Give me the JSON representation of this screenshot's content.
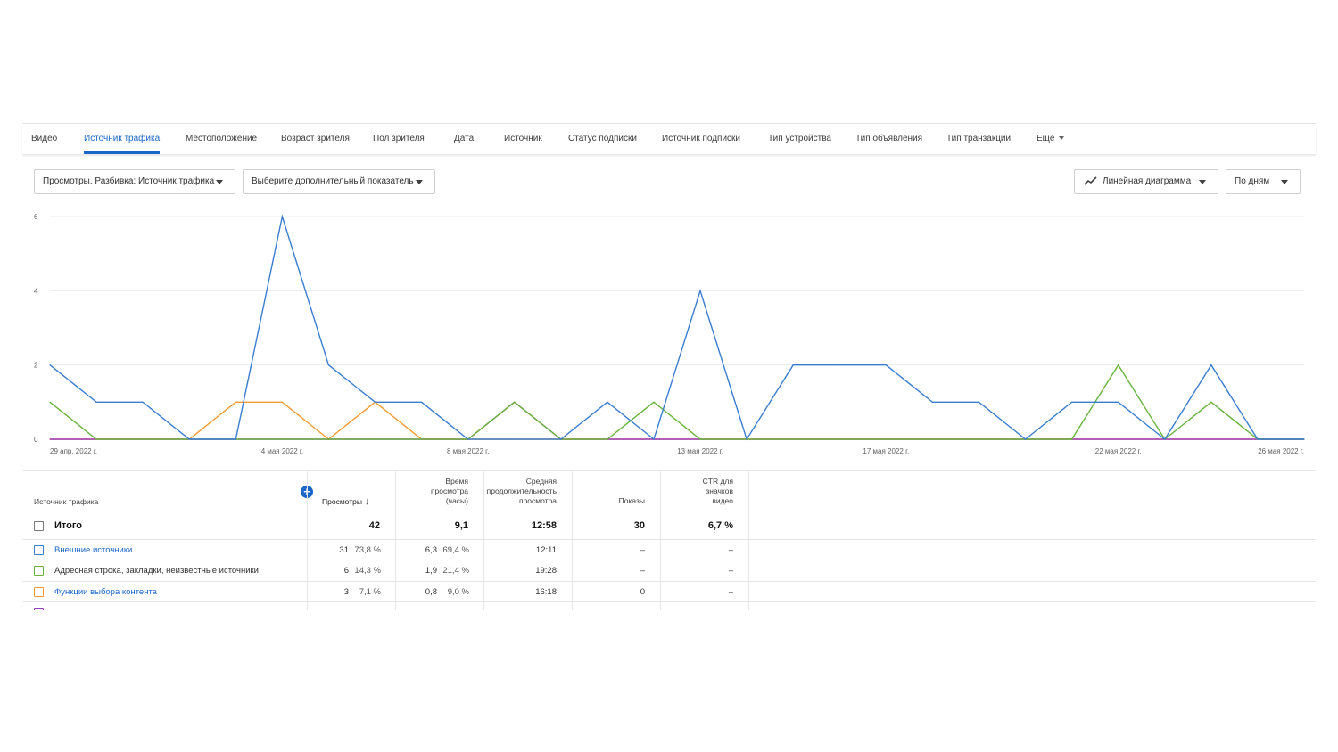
{
  "tabs": [
    {
      "label": "Видео",
      "active": false
    },
    {
      "label": "Источник трафика",
      "active": true
    },
    {
      "label": "Местоположение",
      "active": false
    },
    {
      "label": "Возраст зрителя",
      "active": false
    },
    {
      "label": "Пол зрителя",
      "active": false
    },
    {
      "label": "Дата",
      "active": false
    },
    {
      "label": "Источник",
      "active": false
    },
    {
      "label": "Статус подписки",
      "active": false
    },
    {
      "label": "Источник подписки",
      "active": false
    },
    {
      "label": "Тип устройства",
      "active": false
    },
    {
      "label": "Тип объявления",
      "active": false
    },
    {
      "label": "Тип транзакции",
      "active": false
    },
    {
      "label": "Ещё",
      "active": false
    }
  ],
  "controls": {
    "metric_select": "Просмотры. Разбивка: Источник трафика",
    "secondary_select": "Выберите дополнительный показатель",
    "chart_type_select": "Линейная диаграмма",
    "period_select": "По дням"
  },
  "chart_data": {
    "type": "line",
    "x": [
      "29 апр. 2022 г.",
      "30 апр. 2022 г.",
      "1 мая 2022 г.",
      "2 мая 2022 г.",
      "3 мая 2022 г.",
      "4 мая 2022 г.",
      "5 мая 2022 г.",
      "6 мая 2022 г.",
      "7 мая 2022 г.",
      "8 мая 2022 г.",
      "9 мая 2022 г.",
      "10 мая 2022 г.",
      "11 мая 2022 г.",
      "12 мая 2022 г.",
      "13 мая 2022 г.",
      "14 мая 2022 г.",
      "15 мая 2022 г.",
      "16 мая 2022 г.",
      "17 мая 2022 г.",
      "18 мая 2022 г.",
      "19 мая 2022 г.",
      "20 мая 2022 г.",
      "21 мая 2022 г.",
      "22 мая 2022 г.",
      "23 мая 2022 г.",
      "24 мая 2022 г.",
      "25 мая 2022 г.",
      "26 мая 2022 г."
    ],
    "x_tick_labels": [
      "29 апр. 2022 г.",
      "4 мая 2022 г.",
      "8 мая 2022 г.",
      "13 мая 2022 г.",
      "17 мая 2022 г.",
      "22 мая 2022 г.",
      "26 мая 2022 г."
    ],
    "y_ticks": [
      0,
      2,
      4,
      6
    ],
    "ylim": [
      0,
      6
    ],
    "grid": true,
    "series": [
      {
        "color": "#f29b34",
        "values": [
          0,
          0,
          0,
          0,
          1,
          1,
          0,
          1,
          0,
          0,
          0,
          0,
          0,
          0,
          0,
          0,
          0,
          0,
          0,
          0,
          0,
          0,
          0,
          0,
          0,
          0,
          0,
          0
        ]
      },
      {
        "color": "#9b3dbf",
        "values": [
          0,
          0,
          0,
          0,
          0,
          0,
          0,
          0,
          0,
          0,
          1,
          0,
          0,
          0,
          0,
          0,
          0,
          0,
          0,
          0,
          0,
          0,
          0,
          0,
          0,
          0,
          0,
          0
        ]
      },
      {
        "color": "#68b43c",
        "values": [
          1,
          0,
          0,
          0,
          0,
          0,
          0,
          0,
          0,
          0,
          1,
          0,
          0,
          1,
          0,
          0,
          0,
          0,
          0,
          0,
          0,
          0,
          0,
          2,
          0,
          1,
          0,
          0
        ]
      },
      {
        "color": "#3a7dd0",
        "values": [
          2,
          1,
          1,
          0,
          0,
          6,
          2,
          1,
          1,
          0,
          0,
          0,
          1,
          0,
          4,
          0,
          2,
          2,
          2,
          1,
          1,
          0,
          1,
          1,
          0,
          2,
          0,
          0
        ]
      }
    ]
  },
  "table": {
    "headers": {
      "source": "Источник трафика",
      "views": "Просмотры",
      "watch_time": [
        "Время",
        "просмотра",
        "(часы)"
      ],
      "avg_duration": [
        "Средняя",
        "продолжительность",
        "просмотра"
      ],
      "impressions": "Показы",
      "ctr": [
        "CTR для",
        "значков",
        "видео"
      ]
    },
    "total": {
      "label": "Итого",
      "views": "42",
      "watch_time": "9,1",
      "avg_duration": "12:58",
      "impressions": "30",
      "ctr": "6,7 %"
    },
    "rows": [
      {
        "label": "Внешние источники",
        "link": true,
        "color": "#3a7dd0",
        "views": "31",
        "views_pct": "73,8 %",
        "watch_time": "6,3",
        "watch_pct": "69,4 %",
        "avg_duration": "12:11",
        "impressions": "–",
        "ctr": "–"
      },
      {
        "label": "Адресная строка, закладки, неизвестные источники",
        "link": false,
        "color": "#68b43c",
        "views": "6",
        "views_pct": "14,3 %",
        "watch_time": "1,9",
        "watch_pct": "21,4 %",
        "avg_duration": "19:28",
        "impressions": "–",
        "ctr": "–"
      },
      {
        "label": "Функции выбора контента",
        "link": true,
        "color": "#f29b34",
        "views": "3",
        "views_pct": "7,1 %",
        "watch_time": "0,8",
        "watch_pct": "9,0 %",
        "avg_duration": "16:18",
        "impressions": "0",
        "ctr": "–"
      }
    ]
  }
}
